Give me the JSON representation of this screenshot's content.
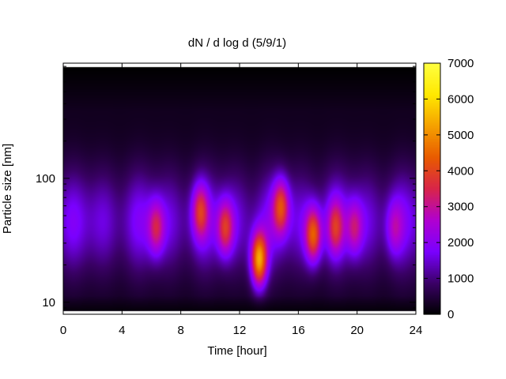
{
  "chart_data": {
    "type": "heatmap",
    "title": "dN / d log d (5/9/1)",
    "xlabel": "Time [hour]",
    "ylabel": "Particle size [nm]",
    "x_range": [
      0,
      24
    ],
    "y_range": [
      8,
      850
    ],
    "y_scale": "log",
    "x_ticks": [
      "0",
      "4",
      "8",
      "12",
      "16",
      "20",
      "24"
    ],
    "y_ticks": [
      "10",
      "100"
    ],
    "colorbar": {
      "range": [
        0,
        7000
      ],
      "ticks": [
        "0",
        "1000",
        "2000",
        "3000",
        "4000",
        "5000",
        "6000",
        "7000"
      ],
      "palette": [
        "#000000",
        "#3a0066",
        "#7a00ff",
        "#b000d0",
        "#d8244a",
        "#e85a00",
        "#f5a000",
        "#ffe800",
        "#ffff40"
      ]
    },
    "hotspots": [
      {
        "time_hour": 6.3,
        "size_nm": 40,
        "value": 3800
      },
      {
        "time_hour": 9.3,
        "size_nm": 55,
        "value": 4000
      },
      {
        "time_hour": 11.0,
        "size_nm": 40,
        "value": 4200
      },
      {
        "time_hour": 13.3,
        "size_nm": 22,
        "value": 6200
      },
      {
        "time_hour": 14.8,
        "size_nm": 60,
        "value": 4500
      },
      {
        "time_hour": 17.0,
        "size_nm": 35,
        "value": 5000
      },
      {
        "time_hour": 18.5,
        "size_nm": 40,
        "value": 3800
      },
      {
        "time_hour": 19.8,
        "size_nm": 40,
        "value": 3500
      },
      {
        "time_hour": 22.5,
        "size_nm": 40,
        "value": 3000
      }
    ]
  }
}
